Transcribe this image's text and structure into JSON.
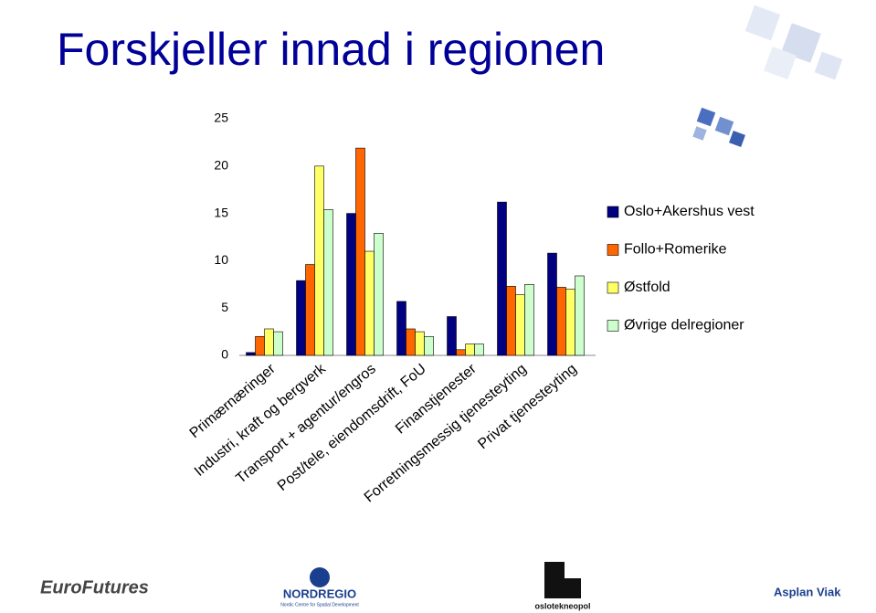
{
  "chart_data": {
    "type": "bar",
    "title": "Forskjeller innad i regionen",
    "categories": [
      "Primærnæringer",
      "Industri, kraft og bergverk",
      "Transport + agentur/engros",
      "Post/tele, eiendomsdrift, FoU",
      "Finanstjenester",
      "Forretningsmessig tjenesteyting",
      "Privat tjenesteyting"
    ],
    "series": [
      {
        "name": "Oslo+Akershus vest",
        "color": "#000080",
        "values": [
          0.3,
          7.9,
          15.0,
          5.7,
          4.1,
          16.2,
          10.8
        ]
      },
      {
        "name": "Follo+Romerike",
        "color": "#ff6600",
        "values": [
          2.0,
          9.6,
          21.9,
          2.8,
          0.6,
          7.3,
          7.2
        ]
      },
      {
        "name": "Østfold",
        "color": "#ffff66",
        "values": [
          2.8,
          20.0,
          11.0,
          2.5,
          1.2,
          6.4,
          7.0
        ]
      },
      {
        "name": "Øvrige delregioner",
        "color": "#ccffcc",
        "values": [
          2.5,
          15.4,
          12.9,
          2.0,
          1.2,
          7.5,
          8.4
        ]
      }
    ],
    "ylim": [
      0,
      25
    ],
    "yticks": [
      0,
      5,
      10,
      15,
      20,
      25
    ],
    "grid": false,
    "legend": "right"
  },
  "logos": [
    "EuroFutures",
    "NORDREGIO",
    "Nordic Centre for Spatial Development",
    "oslotekneopol",
    "Asplan Viak"
  ]
}
